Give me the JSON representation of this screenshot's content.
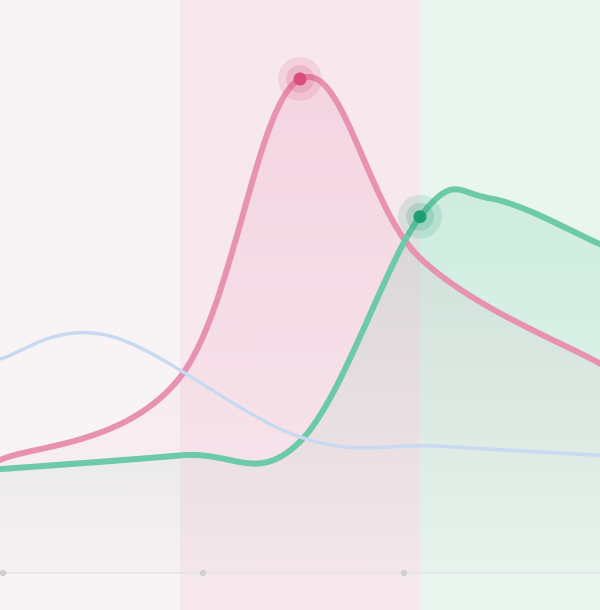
{
  "chart_data": {
    "type": "line",
    "x": [
      0,
      1,
      2,
      3,
      4,
      5,
      6
    ],
    "xlim": [
      0,
      6
    ],
    "ylim": [
      0,
      100
    ],
    "grid": false,
    "legend": "none",
    "series": [
      {
        "values": [
          17,
          35,
          100,
          61,
          38
        ],
        "x": [
          0,
          1.8,
          3,
          4.2,
          6
        ],
        "color": "#e892b2",
        "highlight_x": 3,
        "highlight_color": "#d94d7e",
        "fill": true
      },
      {
        "values": [
          15,
          18,
          21,
          70,
          74,
          64
        ],
        "x": [
          0,
          1.8,
          3,
          4.2,
          4.9,
          6
        ],
        "color": "#6ccaa8",
        "highlight_x": 4.2,
        "highlight_color": "#1f9d74",
        "fill": true
      },
      {
        "values": [
          39,
          44,
          22,
          20,
          18
        ],
        "x": [
          0,
          1.1,
          3,
          4.4,
          6
        ],
        "color": "#c8d9f0",
        "fill": false
      }
    ],
    "bands": [
      {
        "from": 0,
        "to": 1.8,
        "color": "#f8f4f5"
      },
      {
        "from": 1.8,
        "to": 4.2,
        "color": "#f7e8ee"
      },
      {
        "from": 4.2,
        "to": 6,
        "color": "#e9f6ef"
      }
    ],
    "axis_color": "#e3e3e3",
    "tick_color": "#cfcfcf"
  }
}
